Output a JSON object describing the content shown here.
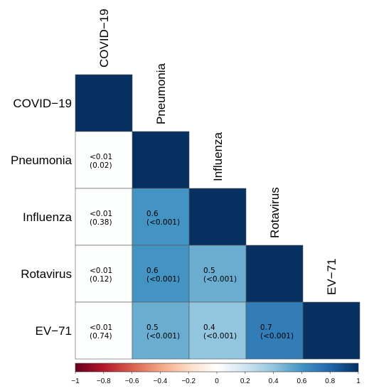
{
  "chart_data": {
    "type": "heatmap",
    "variables": [
      "COVID−19",
      "Pneumonia",
      "Influenza",
      "Rotavirus",
      "EV−71"
    ],
    "cells": [
      {
        "row": 1,
        "col": 0,
        "r": 0.01,
        "r_label": "<0.01",
        "p_label": "(0.02)"
      },
      {
        "row": 2,
        "col": 0,
        "r": 0.01,
        "r_label": "<0.01",
        "p_label": "(0.38)"
      },
      {
        "row": 3,
        "col": 0,
        "r": 0.01,
        "r_label": "<0.01",
        "p_label": "(0.12)"
      },
      {
        "row": 4,
        "col": 0,
        "r": 0.01,
        "r_label": "<0.01",
        "p_label": "(0.74)"
      },
      {
        "row": 2,
        "col": 1,
        "r": 0.6,
        "r_label": "0.6",
        "p_label": "(<0.001)"
      },
      {
        "row": 3,
        "col": 1,
        "r": 0.6,
        "r_label": "0.6",
        "p_label": "(<0.001)"
      },
      {
        "row": 4,
        "col": 1,
        "r": 0.5,
        "r_label": "0.5",
        "p_label": "(<0.001)"
      },
      {
        "row": 3,
        "col": 2,
        "r": 0.5,
        "r_label": "0.5",
        "p_label": "(<0.001)"
      },
      {
        "row": 4,
        "col": 2,
        "r": 0.4,
        "r_label": "0.4",
        "p_label": "(<0.001)"
      },
      {
        "row": 4,
        "col": 3,
        "r": 0.7,
        "r_label": "0.7",
        "p_label": "(<0.001)"
      }
    ],
    "diagonal_value": 1,
    "colorbar": {
      "range": [
        -1,
        1
      ],
      "ticks": [
        -1,
        -0.8,
        -0.6,
        -0.4,
        -0.2,
        0,
        0.2,
        0.4,
        0.6,
        0.8,
        1
      ],
      "tick_labels": [
        "−1",
        "−0.8",
        "−0.6",
        "−0.4",
        "−0.2",
        "0",
        "0.2",
        "0.4",
        "0.6",
        "0.8",
        "1"
      ],
      "colors": {
        "neg": "#67001f",
        "mid": "#ffffff",
        "pos": "#053061"
      }
    }
  }
}
